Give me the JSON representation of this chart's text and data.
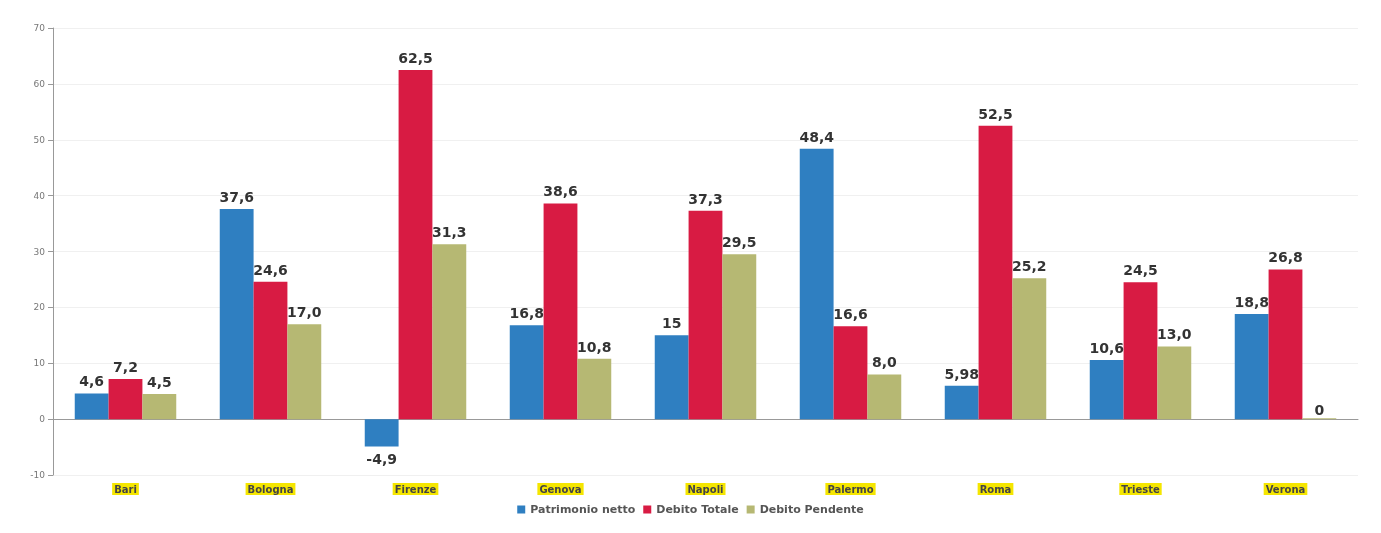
{
  "chart_data": {
    "type": "bar",
    "categories": [
      "Bari",
      "Bologna",
      "Firenze",
      "Genova",
      "Napoli",
      "Palermo",
      "Roma",
      "Trieste",
      "Verona"
    ],
    "series": [
      {
        "name": "Patrimonio netto",
        "color": "#2f7fc1",
        "values": [
          4.6,
          37.6,
          -4.9,
          16.8,
          15,
          48.4,
          5.98,
          10.6,
          18.8
        ],
        "value_labels": [
          "4,6",
          "37,6",
          "-4,9",
          "16,8",
          "15",
          "48,4",
          "5,98",
          "10,6",
          "18,8"
        ]
      },
      {
        "name": "Debito Totale",
        "color": "#d81b43",
        "values": [
          7.2,
          24.6,
          62.5,
          38.6,
          37.3,
          16.6,
          52.5,
          24.5,
          26.8
        ],
        "value_labels": [
          "7,2",
          "24,6",
          "62,5",
          "38,6",
          "37,3",
          "16,6",
          "52,5",
          "24,5",
          "26,8"
        ]
      },
      {
        "name": "Debito Pendente",
        "color": "#b6b873",
        "values": [
          4.5,
          17.0,
          31.3,
          10.8,
          29.5,
          8.0,
          25.2,
          13.0,
          0
        ],
        "value_labels": [
          "4,5",
          "17,0",
          "31,3",
          "10,8",
          "29,5",
          "8,0",
          "25,2",
          "13,0",
          "0"
        ]
      }
    ],
    "ylim": [
      -10,
      70
    ],
    "yticks": [
      -10,
      0,
      10,
      20,
      30,
      40,
      50,
      60,
      70
    ],
    "grid": "y",
    "legend": "bottom"
  }
}
